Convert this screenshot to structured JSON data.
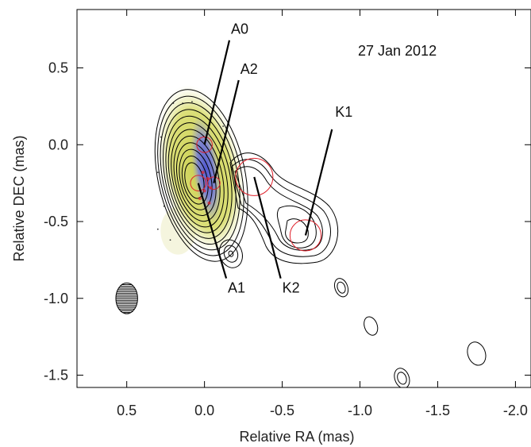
{
  "chart_data": {
    "type": "contour",
    "epoch": "27 Jan 2012",
    "xlabel": "Relative RA (mas)",
    "ylabel": "Relative DEC (mas)",
    "xlim": [
      0.82,
      -2.1
    ],
    "ylim": [
      -1.58,
      0.88
    ],
    "x_ticks": [
      0.5,
      0.0,
      -0.5,
      -1.0,
      -1.5,
      -2.0
    ],
    "x_tick_labels": [
      "0.5",
      "0.0",
      "-0.5",
      "-1.0",
      "-1.5",
      "-2.0"
    ],
    "y_ticks": [
      0.5,
      0.0,
      -0.5,
      -1.0,
      -1.5
    ],
    "y_tick_labels": [
      "0.5",
      "0.0",
      "-0.5",
      "-1.0",
      "-1.5"
    ],
    "components": [
      {
        "name": "A0",
        "ra": 0.0,
        "dec": 0.0,
        "label_ra": -0.16,
        "label_dec": 0.68
      },
      {
        "name": "A2",
        "ra": -0.06,
        "dec": -0.25,
        "label_ra": -0.22,
        "label_dec": 0.42
      },
      {
        "name": "A1",
        "ra": 0.04,
        "dec": -0.25,
        "label_ra": -0.14,
        "label_dec": -0.87
      },
      {
        "name": "K1",
        "ra": -0.65,
        "dec": -0.59,
        "label_ra": -0.82,
        "label_dec": 0.1
      },
      {
        "name": "K2",
        "ra": -0.32,
        "dec": -0.21,
        "label_ra": -0.49,
        "label_dec": -0.87
      }
    ],
    "model_circles": [
      {
        "ra": 0.0,
        "dec": 0.0,
        "r": 0.05
      },
      {
        "ra": -0.06,
        "dec": -0.25,
        "r": 0.04
      },
      {
        "ra": 0.04,
        "dec": -0.25,
        "r": 0.05
      },
      {
        "ra": -0.32,
        "dec": -0.21,
        "r": 0.12
      },
      {
        "ra": -0.65,
        "dec": -0.59,
        "r": 0.1
      }
    ],
    "beam": {
      "ra": 0.5,
      "dec": -1.0,
      "major": 0.1,
      "minor": 0.07
    },
    "colors": {
      "contour": "#000000",
      "model": "#e0202a",
      "polarization_low": "#d8dc6a",
      "polarization_high": "#6a72e0"
    }
  }
}
